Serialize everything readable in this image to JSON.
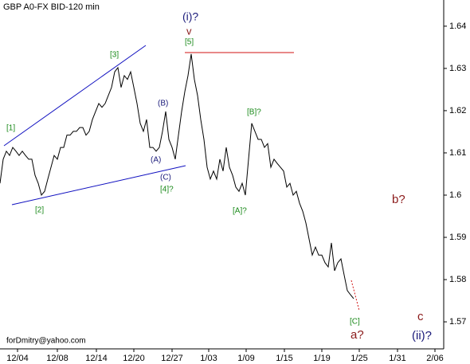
{
  "chart_data": {
    "type": "line",
    "title": "GBP A0-FX BID-120 min",
    "watermark": "forDmitry@yahoo.com",
    "series": [
      {
        "name": "GBP",
        "color": "#000000",
        "values": [
          1.6028,
          1.6085,
          1.6104,
          1.6094,
          1.6113,
          1.6104,
          1.6094,
          1.6104,
          1.6094,
          1.6085,
          1.6085,
          1.6047,
          1.6028,
          1.6,
          1.6009,
          1.6038,
          1.6066,
          1.6094,
          1.6085,
          1.6113,
          1.6113,
          1.6142,
          1.6142,
          1.6151,
          1.6151,
          1.616,
          1.616,
          1.6142,
          1.6151,
          1.6179,
          1.6198,
          1.6217,
          1.6208,
          1.6217,
          1.6236,
          1.6255,
          1.6292,
          1.6302,
          1.6255,
          1.6283,
          1.6274,
          1.6292,
          1.6255,
          1.6217,
          1.617,
          1.6151,
          1.6179,
          1.6113,
          1.6113,
          1.6104,
          1.6113,
          1.6151,
          1.6198,
          1.6132,
          1.6113,
          1.6085,
          1.6142,
          1.6198,
          1.6245,
          1.6283,
          1.6334,
          1.6274,
          1.6236,
          1.6179,
          1.6132,
          1.6066,
          1.6038,
          1.6057,
          1.6038,
          1.6085,
          1.6057,
          1.6113,
          1.6066,
          1.6047,
          1.6019,
          1.6009,
          1.6028,
          1.6,
          1.6085,
          1.617,
          1.6151,
          1.6132,
          1.6132,
          1.6113,
          1.6122,
          1.6066,
          1.6085,
          1.6075,
          1.6066,
          1.6057,
          1.6019,
          1.6028,
          1.6,
          1.6009,
          1.5981,
          1.5962,
          1.5934,
          1.5896,
          1.5858,
          1.5877,
          1.5858,
          1.5858,
          1.584,
          1.583,
          1.5887,
          1.5821,
          1.584,
          1.5849,
          1.5811,
          1.5774,
          1.5764,
          1.5755
        ]
      }
    ],
    "xlim": [
      0,
      139.25
    ],
    "xticks": [
      {
        "value": 5.5,
        "label": "12/04"
      },
      {
        "value": 18,
        "label": "12/08"
      },
      {
        "value": 30.25,
        "label": "12/14"
      },
      {
        "value": 42,
        "label": "12/20"
      },
      {
        "value": 54,
        "label": "12/27"
      },
      {
        "value": 65.5,
        "label": "1/03"
      },
      {
        "value": 77.25,
        "label": "1/09"
      },
      {
        "value": 89.25,
        "label": "1/15"
      },
      {
        "value": 101,
        "label": "1/19"
      },
      {
        "value": 112.75,
        "label": "1/25"
      },
      {
        "value": 124.75,
        "label": "1/31"
      },
      {
        "value": 136.5,
        "label": "2/06"
      }
    ],
    "ylim": [
      1.5636,
      1.6462
    ],
    "yticks": [
      1.57,
      1.58,
      1.59,
      1.6,
      1.61,
      1.62,
      1.63,
      1.64
    ],
    "annotations": [
      "[1]",
      "[2]",
      "[3]",
      "[4]?",
      "[5]",
      "(i)?",
      "v",
      "(A)",
      "(B)",
      "(C)",
      "[A]?",
      "[B]?",
      "[C]",
      "a?",
      "b?",
      "c",
      "(ii)?"
    ]
  }
}
